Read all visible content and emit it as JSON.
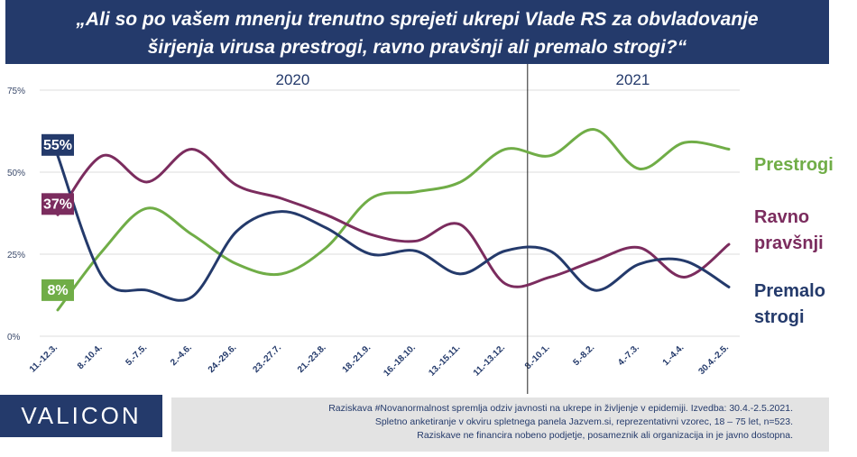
{
  "title": "„Ali so po vašem mnenju trenutno sprejeti ukrepi Vlade RS za obvladovanje širjenja virusa prestrogi, ravno pravšnji ali premalo strogi?“",
  "logo": "VALICON",
  "footer": {
    "line1": "Raziskava #Novanormalnost spremlja odziv javnosti na ukrepe in življenje v epidemiji. Izvedba: 30.4.-2.5.2021.",
    "line2": "Spletno anketiranje v okviru spletnega panela Jazvem.si, reprezentativni vzorec, 18 – 75 let, n=523.",
    "line3": "Raziskave ne financira nobeno podjetje, posameznik ali organizacija in je javno dostopna."
  },
  "chart_data": {
    "type": "line",
    "categories": [
      "11.-12.3.",
      "8.-10.4.",
      "5.-7.5.",
      "2.-4.6.",
      "24.-29.6.",
      "23.-27.7.",
      "21.-23.8.",
      "18.-21.9.",
      "16.-18.10.",
      "13.-15.11.",
      "11.-13.12.",
      "8.-10.1.",
      "5.-8.2.",
      "4.-7.3.",
      "1.-4.4.",
      "30.4.-2.5."
    ],
    "year_labels": [
      "2020",
      "2021"
    ],
    "yticks": [
      "0%",
      "25%",
      "50%",
      "75%"
    ],
    "ylim": [
      0,
      75
    ],
    "series": [
      {
        "name": "Prestrogi",
        "color": "#70ad47",
        "start_label": "8%",
        "values": [
          8,
          26,
          39,
          31,
          22,
          19,
          27,
          42,
          44,
          47,
          57,
          55,
          63,
          51,
          59,
          57
        ]
      },
      {
        "name": "Ravno pravšnji",
        "color": "#7b2c5e",
        "start_label": "37%",
        "values": [
          37,
          55,
          47,
          57,
          46,
          42,
          37,
          31,
          29,
          34,
          16,
          18,
          23,
          27,
          18,
          28
        ]
      },
      {
        "name": "Premalo strogi",
        "color": "#243a6b",
        "start_label": "55%",
        "values": [
          55,
          18,
          14,
          12,
          32,
          38,
          33,
          25,
          26,
          19,
          26,
          26,
          14,
          22,
          23,
          15
        ]
      }
    ],
    "legend_labels": [
      {
        "series": "Prestrogi",
        "lines": [
          "Prestrogi"
        ]
      },
      {
        "series": "Ravno pravšnji",
        "lines": [
          "Ravno",
          "pravšnji"
        ]
      },
      {
        "series": "Premalo strogi",
        "lines": [
          "Premalo",
          "strogi"
        ]
      }
    ]
  }
}
